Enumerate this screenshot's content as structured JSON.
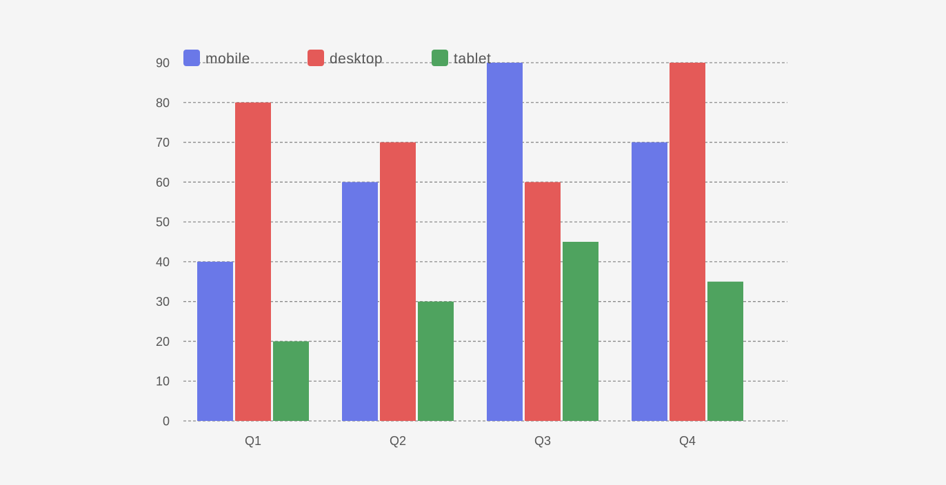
{
  "chart_data": {
    "type": "bar",
    "categories": [
      "Q1",
      "Q2",
      "Q3",
      "Q4"
    ],
    "series": [
      {
        "name": "mobile",
        "color": "#6a78e8",
        "values": [
          40,
          60,
          90,
          70
        ]
      },
      {
        "name": "desktop",
        "color": "#e45a58",
        "values": [
          80,
          70,
          60,
          90
        ]
      },
      {
        "name": "tablet",
        "color": "#4fa35f",
        "values": [
          20,
          30,
          45,
          35
        ]
      }
    ],
    "title": "",
    "xlabel": "",
    "ylabel": "",
    "ylim": [
      0,
      90
    ],
    "yticks": [
      0,
      10,
      20,
      30,
      40,
      50,
      60,
      70,
      80,
      90
    ],
    "grid": true,
    "legend_position": "top-left"
  }
}
